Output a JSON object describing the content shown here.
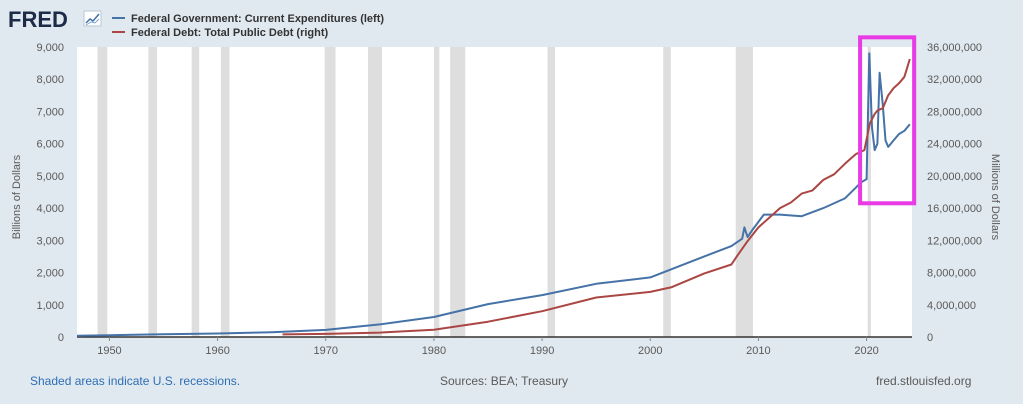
{
  "brand": {
    "logo_text": "FRED"
  },
  "colors": {
    "background": "#e1e9f0",
    "plot_background": "#ffffff",
    "recession_shade": "#dedede",
    "series_left": "#4572a7",
    "series_right": "#aa4643",
    "highlight_box": "#e83be6",
    "axis_text": "#595959"
  },
  "footer": {
    "recession_note": "Shaded areas indicate U.S. recessions.",
    "sources": "Sources: BEA; Treasury",
    "site": "fred.stlouisfed.org"
  },
  "chart_data": {
    "type": "line",
    "legend_position": "top-left",
    "grid": false,
    "xlim": [
      1947,
      2024.2
    ],
    "x_ticks": [
      1950,
      1960,
      1970,
      1980,
      1990,
      2000,
      2010,
      2020
    ],
    "left_axis": {
      "label": "Billions of Dollars",
      "ylim": [
        0,
        9000
      ],
      "ticks": [
        0,
        1000,
        2000,
        3000,
        4000,
        5000,
        6000,
        7000,
        8000,
        9000
      ],
      "tick_labels": [
        "0",
        "1,000",
        "2,000",
        "3,000",
        "4,000",
        "5,000",
        "6,000",
        "7,000",
        "8,000",
        "9,000"
      ]
    },
    "right_axis": {
      "label": "Millions of Dollars",
      "ylim": [
        0,
        36000000
      ],
      "ticks": [
        0,
        4000000,
        8000000,
        12000000,
        16000000,
        20000000,
        24000000,
        28000000,
        32000000,
        36000000
      ],
      "tick_labels": [
        "0",
        "4,000,000",
        "8,000,000",
        "12,000,000",
        "16,000,000",
        "20,000,000",
        "24,000,000",
        "28,000,000",
        "32,000,000",
        "36,000,000"
      ]
    },
    "recessions": [
      [
        1948.9,
        1949.8
      ],
      [
        1953.6,
        1954.4
      ],
      [
        1957.6,
        1958.3
      ],
      [
        1960.3,
        1961.1
      ],
      [
        1969.9,
        1970.9
      ],
      [
        1973.9,
        1975.2
      ],
      [
        1980.0,
        1980.5
      ],
      [
        1981.5,
        1982.9
      ],
      [
        1990.5,
        1991.2
      ],
      [
        2001.2,
        2001.9
      ],
      [
        2007.9,
        2009.5
      ],
      [
        2020.1,
        2020.4
      ]
    ],
    "series": [
      {
        "name": "Federal Government: Current Expenditures (left)",
        "axis": "left",
        "color": "#4572a7",
        "x": [
          1947,
          1950,
          1955,
          1960,
          1965,
          1970,
          1975,
          1980,
          1985,
          1990,
          1995,
          2000,
          2005,
          2007.5,
          2008.5,
          2008.7,
          2009,
          2009.5,
          2010.5,
          2012,
          2014,
          2016,
          2018,
          2019.5,
          2020.0,
          2020.25,
          2020.5,
          2020.75,
          2021.0,
          2021.2,
          2021.5,
          2021.75,
          2022.0,
          2022.5,
          2023,
          2023.5,
          2024.0
        ],
        "y": [
          40,
          55,
          85,
          110,
          150,
          220,
          390,
          620,
          1020,
          1300,
          1650,
          1850,
          2500,
          2820,
          3050,
          3400,
          3100,
          3350,
          3800,
          3800,
          3750,
          4000,
          4300,
          4800,
          4900,
          8800,
          6500,
          5800,
          6000,
          8200,
          7200,
          6100,
          5900,
          6100,
          6300,
          6400,
          6600
        ]
      },
      {
        "name": "Federal Debt: Total Public Debt (right)",
        "axis": "right",
        "color": "#aa4643",
        "x": [
          1966,
          1970,
          1975,
          1980,
          1985,
          1990,
          1995,
          2000,
          2002,
          2005,
          2007.5,
          2008,
          2009,
          2010,
          2011,
          2012,
          2013,
          2014,
          2015,
          2016,
          2017,
          2018,
          2019,
          2019.8,
          2020.3,
          2020.75,
          2021,
          2021.5,
          2022,
          2022.5,
          2023,
          2023.5,
          2024.0
        ],
        "y": [
          320000,
          380000,
          540000,
          910000,
          1900000,
          3200000,
          4900000,
          5600000,
          6200000,
          7900000,
          9000000,
          10000000,
          11900000,
          13600000,
          14800000,
          16000000,
          16700000,
          17800000,
          18200000,
          19500000,
          20200000,
          21500000,
          22700000,
          23200000,
          26500000,
          27700000,
          28100000,
          28400000,
          30000000,
          30900000,
          31500000,
          32300000,
          34500000
        ]
      }
    ],
    "annotation": {
      "type": "highlight_box",
      "x_range": [
        2019.4,
        2024.4
      ],
      "y_range_left": [
        4150,
        9300
      ],
      "color": "#e83be6"
    }
  }
}
